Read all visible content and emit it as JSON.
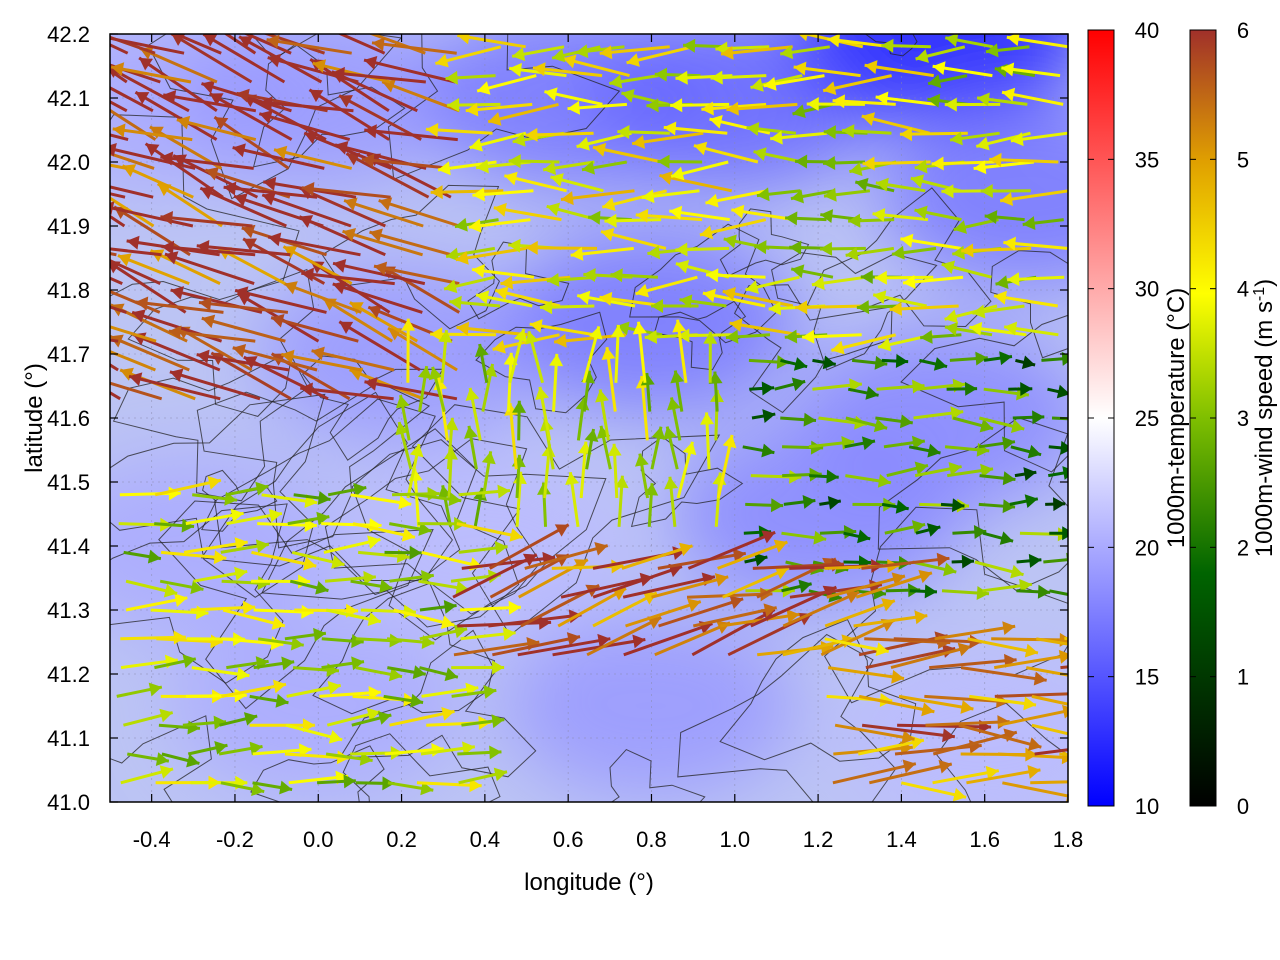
{
  "chart_data": {
    "type": "heatmap",
    "title": "",
    "xlabel": "longitude (°)",
    "ylabel": "latitude (°)",
    "xlim": [
      -0.5,
      1.8
    ],
    "ylim": [
      41.0,
      42.2
    ],
    "x_ticks": [
      "-0.4",
      "-0.2",
      "0.0",
      "0.2",
      "0.4",
      "0.6",
      "0.8",
      "1.0",
      "1.2",
      "1.4",
      "1.6",
      "1.8"
    ],
    "y_ticks": [
      "41.0",
      "41.1",
      "41.2",
      "41.3",
      "41.4",
      "41.5",
      "41.6",
      "41.7",
      "41.8",
      "41.9",
      "42.0",
      "42.1",
      "42.2"
    ],
    "grid": true,
    "overlays": [
      "temperature field (color)",
      "wind vectors (arrows)",
      "terrain contours (black lines)"
    ],
    "temperature_colorbar": {
      "label": "1000m-temperature (°C)",
      "range": [
        10,
        40
      ],
      "ticks": [
        "10",
        "15",
        "20",
        "25",
        "30",
        "35",
        "40"
      ],
      "colors": [
        "#0000ff",
        "#ffffff",
        "#ff0000"
      ]
    },
    "wind_colorbar": {
      "label_main": "1000m-wind speed (m s",
      "label_sup": "-1",
      "label_end": ")",
      "range": [
        0,
        6
      ],
      "ticks": [
        "0",
        "1",
        "2",
        "3",
        "4",
        "5",
        "6"
      ],
      "colors": [
        "#000000",
        "#006400",
        "#7fbf00",
        "#ffff00",
        "#e0a000",
        "#a0302a"
      ]
    },
    "temperature_field_approx": [
      {
        "lon": -0.4,
        "lat": 42.1,
        "temp": 20
      },
      {
        "lon": 0.0,
        "lat": 42.1,
        "temp": 19
      },
      {
        "lon": 0.6,
        "lat": 42.1,
        "temp": 17
      },
      {
        "lon": 1.0,
        "lat": 42.1,
        "temp": 16
      },
      {
        "lon": 1.5,
        "lat": 42.2,
        "temp": 12
      },
      {
        "lon": 1.7,
        "lat": 41.95,
        "temp": 17
      },
      {
        "lon": 0.2,
        "lat": 41.7,
        "temp": 19
      },
      {
        "lon": 0.8,
        "lat": 41.75,
        "temp": 17
      },
      {
        "lon": 1.5,
        "lat": 41.6,
        "temp": 18
      },
      {
        "lon": -0.3,
        "lat": 41.4,
        "temp": 20
      },
      {
        "lon": 0.4,
        "lat": 41.4,
        "temp": 21
      },
      {
        "lon": 1.2,
        "lat": 41.45,
        "temp": 18
      },
      {
        "lon": 0.0,
        "lat": 41.15,
        "temp": 20
      },
      {
        "lon": 0.8,
        "lat": 41.15,
        "temp": 19
      },
      {
        "lon": 1.6,
        "lat": 41.1,
        "temp": 21
      }
    ],
    "wind_vectors_approx": [
      {
        "region": "northwest",
        "lon_range": [
          -0.5,
          0.4
        ],
        "lat_range": [
          41.6,
          42.2
        ],
        "direction": "toward west-northwest",
        "speed": 5.8
      },
      {
        "region": "north-central",
        "lon_range": [
          0.4,
          1.2
        ],
        "lat_range": [
          41.7,
          42.2
        ],
        "direction": "toward west",
        "speed": 3.5
      },
      {
        "region": "northeast",
        "lon_range": [
          1.2,
          1.8
        ],
        "lat_range": [
          41.7,
          42.2
        ],
        "direction": "toward west",
        "speed": 3.2
      },
      {
        "region": "center",
        "lon_range": [
          0.2,
          1.0
        ],
        "lat_range": [
          41.4,
          41.7
        ],
        "direction": "toward north",
        "speed": 3.0
      },
      {
        "region": "east",
        "lon_range": [
          1.0,
          1.8
        ],
        "lat_range": [
          41.3,
          41.7
        ],
        "direction": "toward east",
        "speed": 1.8
      },
      {
        "region": "southwest",
        "lon_range": [
          -0.5,
          0.4
        ],
        "lat_range": [
          41.0,
          41.5
        ],
        "direction": "toward east",
        "speed": 3.0
      },
      {
        "region": "south-central",
        "lon_range": [
          0.3,
          1.3
        ],
        "lat_range": [
          41.2,
          41.4
        ],
        "direction": "toward east-northeast",
        "speed": 5.5
      },
      {
        "region": "southeast",
        "lon_range": [
          1.2,
          1.8
        ],
        "lat_range": [
          41.0,
          41.3
        ],
        "direction": "toward east",
        "speed": 5.0
      }
    ]
  }
}
